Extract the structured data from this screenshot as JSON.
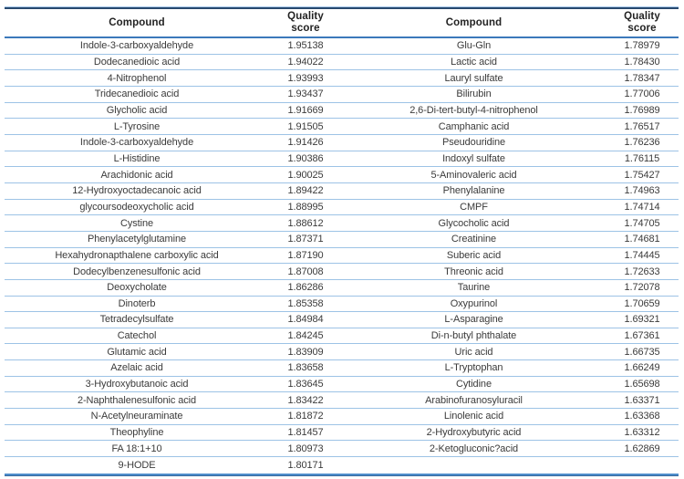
{
  "table": {
    "header": {
      "compound_left": "Compound",
      "quality_left_line1": "Quality",
      "quality_left_line2": "score",
      "compound_right": "Compound",
      "quality_right_line1": "Quality",
      "quality_right_line2": "score"
    },
    "colors": {
      "top_border_dark": "#27496f",
      "top_border_light": "#a9c9ea",
      "header_divider": "#3c79bb",
      "row_divider": "#9dc3e6",
      "bottom_border": "#4f8ecb",
      "body_text": "#3b3b3b",
      "header_text": "#232323"
    },
    "rows": [
      {
        "c1": "Indole-3-carboxyaldehyde",
        "s1": "1.95138",
        "c2": "Glu-Gln",
        "s2": "1.78979"
      },
      {
        "c1": "Dodecanedioic acid",
        "s1": "1.94022",
        "c2": "Lactic acid",
        "s2": "1.78430"
      },
      {
        "c1": "4-Nitrophenol",
        "s1": "1.93993",
        "c2": "Lauryl sulfate",
        "s2": "1.78347"
      },
      {
        "c1": "Tridecanedioic acid",
        "s1": "1.93437",
        "c2": "Bilirubin",
        "s2": "1.77006"
      },
      {
        "c1": "Glycholic acid",
        "s1": "1.91669",
        "c2": "2,6-Di-tert-butyl-4-nitrophenol",
        "s2": "1.76989"
      },
      {
        "c1": "L-Tyrosine",
        "s1": "1.91505",
        "c2": "Camphanic acid",
        "s2": "1.76517"
      },
      {
        "c1": "Indole-3-carboxyaldehyde",
        "s1": "1.91426",
        "c2": "Pseudouridine",
        "s2": "1.76236"
      },
      {
        "c1": "L-Histidine",
        "s1": "1.90386",
        "c2": "Indoxyl sulfate",
        "s2": "1.76115"
      },
      {
        "c1": "Arachidonic acid",
        "s1": "1.90025",
        "c2": "5-Aminovaleric acid",
        "s2": "1.75427"
      },
      {
        "c1": "12-Hydroxyoctadecanoic acid",
        "s1": "1.89422",
        "c2": "Phenylalanine",
        "s2": "1.74963"
      },
      {
        "c1": "glycoursodeoxycholic acid",
        "s1": "1.88995",
        "c2": "CMPF",
        "s2": "1.74714"
      },
      {
        "c1": "Cystine",
        "s1": "1.88612",
        "c2": "Glycocholic acid",
        "s2": "1.74705"
      },
      {
        "c1": "Phenylacetylglutamine",
        "s1": "1.87371",
        "c2": "Creatinine",
        "s2": "1.74681"
      },
      {
        "c1": "Hexahydronapthalene carboxylic acid",
        "s1": "1.87190",
        "c2": "Suberic acid",
        "s2": "1.74445"
      },
      {
        "c1": "Dodecylbenzenesulfonic acid",
        "s1": "1.87008",
        "c2": "Threonic acid",
        "s2": "1.72633"
      },
      {
        "c1": "Deoxycholate",
        "s1": "1.86286",
        "c2": "Taurine",
        "s2": "1.72078"
      },
      {
        "c1": "Dinoterb",
        "s1": "1.85358",
        "c2": "Oxypurinol",
        "s2": "1.70659"
      },
      {
        "c1": "Tetradecylsulfate",
        "s1": "1.84984",
        "c2": "L-Asparagine",
        "s2": "1.69321"
      },
      {
        "c1": "Catechol",
        "s1": "1.84245",
        "c2": "Di-n-butyl phthalate",
        "s2": "1.67361"
      },
      {
        "c1": "Glutamic acid",
        "s1": "1.83909",
        "c2": "Uric acid",
        "s2": "1.66735"
      },
      {
        "c1": "Azelaic acid",
        "s1": "1.83658",
        "c2": "L-Tryptophan",
        "s2": "1.66249"
      },
      {
        "c1": "3-Hydroxybutanoic acid",
        "s1": "1.83645",
        "c2": "Cytidine",
        "s2": "1.65698"
      },
      {
        "c1": "2-Naphthalenesulfonic acid",
        "s1": "1.83422",
        "c2": "Arabinofuranosyluracil",
        "s2": "1.63371"
      },
      {
        "c1": "N-Acetylneuraminate",
        "s1": "1.81872",
        "c2": "Linolenic acid",
        "s2": "1.63368"
      },
      {
        "c1": "Theophyline",
        "s1": "1.81457",
        "c2": "2-Hydroxybutyric acid",
        "s2": "1.63312"
      },
      {
        "c1": "FA 18:1+10",
        "s1": "1.80973",
        "c2": "2-Ketogluconic?acid",
        "s2": "1.62869"
      },
      {
        "c1": "9-HODE",
        "s1": "1.80171",
        "c2": "",
        "s2": ""
      }
    ]
  }
}
